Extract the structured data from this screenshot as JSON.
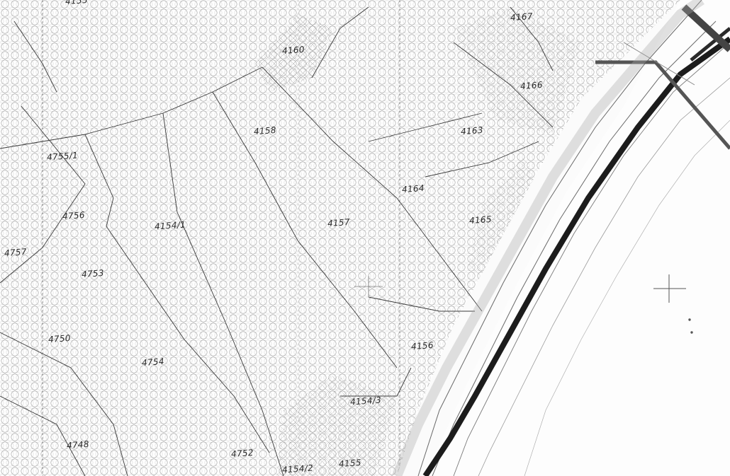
{
  "map": {
    "type": "cadastral-parcel-map",
    "colors": {
      "paper": "#fbfbfb",
      "ink": "#2a2a2a",
      "hatch": "#8c8c8c",
      "road_edge": "#1c1c1c"
    },
    "parcels": [
      {
        "id": "4155",
        "label": "4155"
      },
      {
        "id": "4160",
        "label": "4160"
      },
      {
        "id": "4167",
        "label": "4167"
      },
      {
        "id": "4166",
        "label": "4166"
      },
      {
        "id": "4158",
        "label": "4158"
      },
      {
        "id": "4163",
        "label": "4163"
      },
      {
        "id": "4755/1",
        "label": "4755/1"
      },
      {
        "id": "4164",
        "label": "4164"
      },
      {
        "id": "4756",
        "label": "4756"
      },
      {
        "id": "4154/1",
        "label": "4154/1"
      },
      {
        "id": "4157",
        "label": "4157"
      },
      {
        "id": "4165",
        "label": "4165"
      },
      {
        "id": "4757",
        "label": "4757"
      },
      {
        "id": "4753",
        "label": "4753"
      },
      {
        "id": "4750",
        "label": "4750"
      },
      {
        "id": "4156",
        "label": "4156"
      },
      {
        "id": "4754",
        "label": "4754"
      },
      {
        "id": "4154/3",
        "label": "4154/3"
      },
      {
        "id": "4748",
        "label": "4748"
      },
      {
        "id": "4752",
        "label": "4752"
      },
      {
        "id": "4155-south",
        "label": "4155"
      },
      {
        "id": "4154/2",
        "label": "4154/2"
      }
    ]
  }
}
